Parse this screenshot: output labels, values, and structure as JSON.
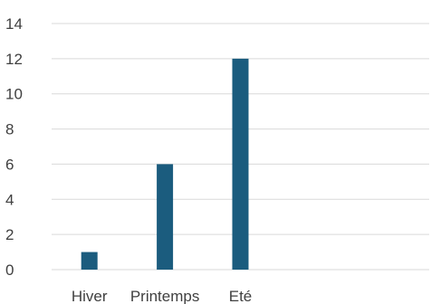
{
  "colors": {
    "bar": "#1B5C7E",
    "grid": "#D9D9D9",
    "text": "#404040"
  },
  "chart_data": {
    "type": "bar",
    "title": "",
    "xlabel": "",
    "ylabel": "",
    "categories": [
      "Hiver",
      "Printemps",
      "Eté",
      "",
      ""
    ],
    "values": [
      1,
      6,
      12,
      null,
      null
    ],
    "ylim": [
      0,
      14
    ],
    "yticks": [
      0,
      2,
      4,
      6,
      8,
      10,
      12,
      14
    ],
    "grid": true,
    "legend": "none"
  }
}
